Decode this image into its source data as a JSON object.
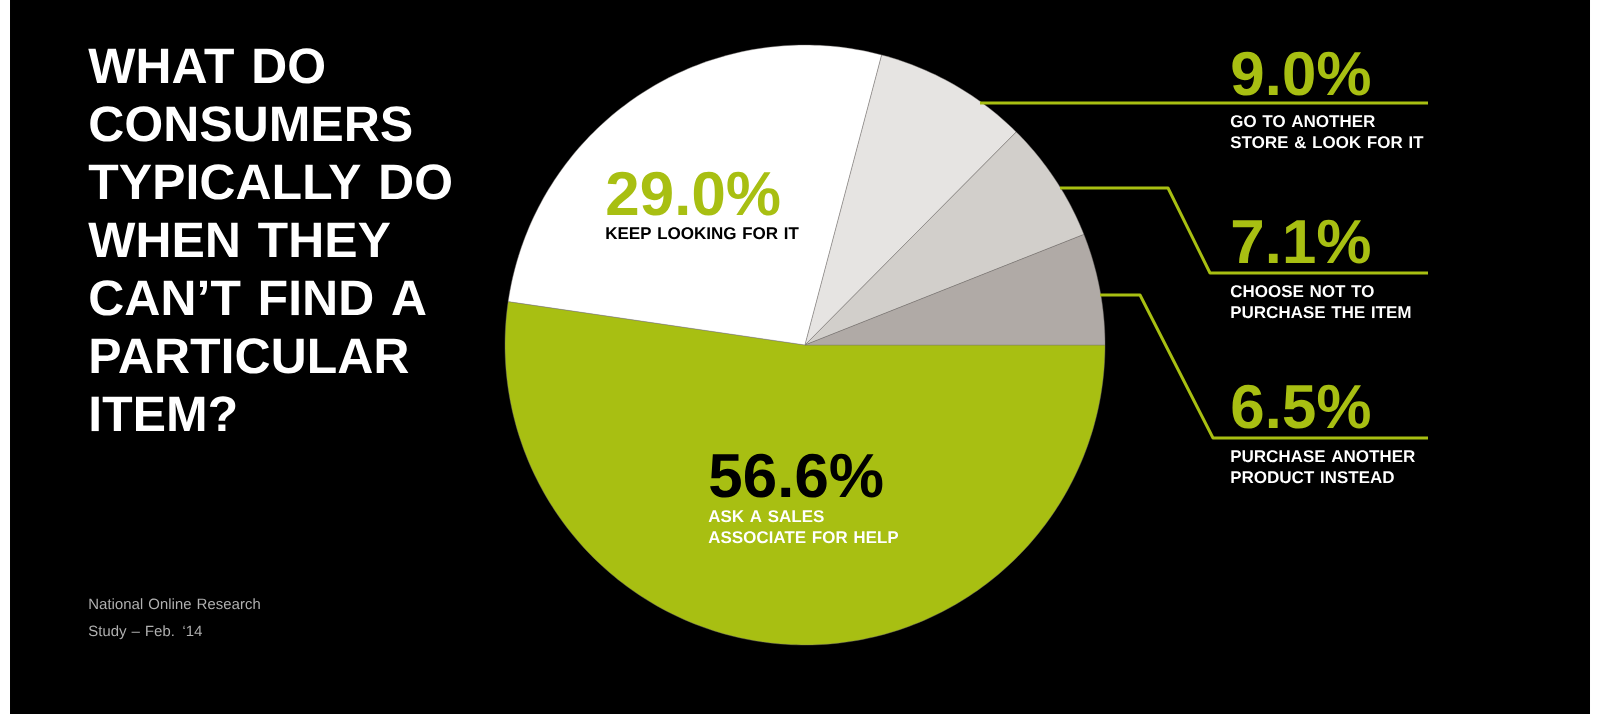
{
  "chart_data": {
    "type": "pie",
    "title": "WHAT DO CONSUMERS TYPICALLY DO WHEN THEY CAN’T FIND A PARTICULAR ITEM?",
    "categories": [
      "ASK A SALES ASSOCIATE FOR HELP",
      "KEEP LOOKING FOR IT",
      "GO TO ANOTHER STORE & LOOK FOR IT",
      "CHOOSE NOT TO PURCHASE THE ITEM",
      "PURCHASE ANOTHER PRODUCT INSTEAD"
    ],
    "values": [
      56.6,
      29.0,
      9.0,
      7.1,
      6.5
    ],
    "value_labels": [
      "56.6%",
      "29.0%",
      "9.0%",
      "7.1%",
      "6.5%"
    ],
    "colors": [
      "#a8bf12",
      "#ffffff",
      "#e6e4e2",
      "#d2cfcb",
      "#b0aaa6"
    ],
    "annotations": [
      "National Online Research Study – Feb. ‘14"
    ]
  }
}
